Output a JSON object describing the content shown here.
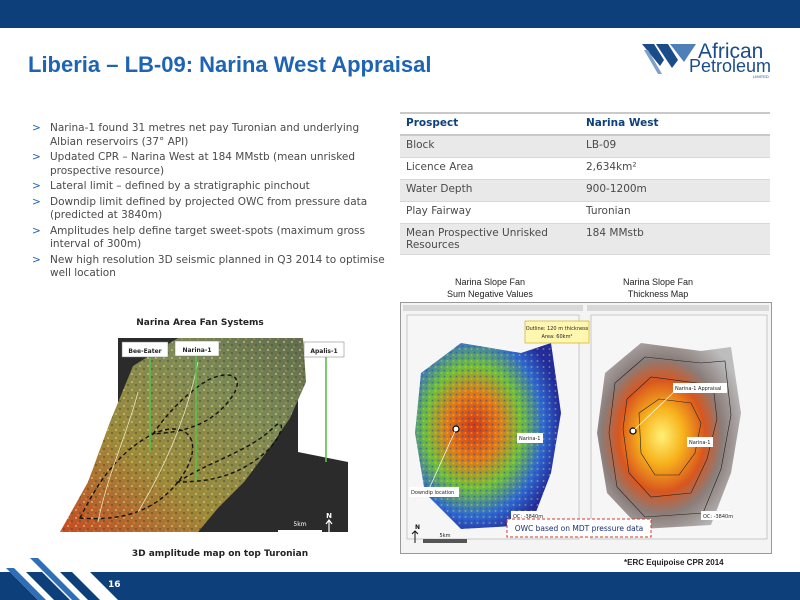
{
  "slide": {
    "title": "Liberia – LB-09: Narina West Appraisal",
    "page_number": "16"
  },
  "logo": {
    "line1": "African",
    "line2": "Petroleum",
    "tag": "LIMITED",
    "colors": {
      "blue": "#1b4c8a"
    }
  },
  "bullets": [
    "Narina-1 found 31 metres net pay Turonian and underlying Albian reservoirs (37° API)",
    "Updated CPR – Narina West at 184 MMstb (mean unrisked prospective resource)",
    "Lateral limit – defined by a stratigraphic pinchout",
    "Downdip limit defined by projected OWC from pressure data (predicted at 3840m)",
    "Amplitudes help define target sweet-spots (maximum gross interval of 300m)",
    "New high resolution 3D seismic planned in Q3 2014 to optimise well location"
  ],
  "bullet_marker": ">",
  "table": {
    "header": [
      "Prospect",
      "Narina West"
    ],
    "rows": [
      [
        "Block",
        "LB-09"
      ],
      [
        "Licence Area",
        "2,634km²"
      ],
      [
        "Water Depth",
        "900-1200m"
      ],
      [
        "Play Fairway",
        "Turonian"
      ],
      [
        "Mean Prospective Unrisked Resources",
        "184 MMstb"
      ]
    ]
  },
  "fan_map": {
    "title": "Narina Area Fan Systems",
    "wells": [
      "Bee-Eater",
      "Narina-1",
      "Apalis-1"
    ],
    "scale": "5km",
    "north": "N",
    "caption": "3D amplitude map on top Turonian"
  },
  "slope_fan": {
    "left_title_1": "Narina Slope Fan",
    "left_title_2": "Sum Negative Values",
    "right_title_1": "Narina Slope Fan",
    "right_title_2": "Thickness Map",
    "outline_note_1": "Outline: 120 m thickness",
    "outline_note_2": "Area: 60km²",
    "label_narina": "Narina-1",
    "label_appraisal": "Narina-1 Appraisal",
    "label_downdip": "Downdip location",
    "label_oil_contact": "OC: -3840m",
    "owc_note": "OWC based on MDT pressure data",
    "scale": "5km",
    "north": "N"
  },
  "footnote": "*ERC Equipoise CPR 2014",
  "colors": {
    "navy": "#0d3f7a",
    "title_blue": "#1e64b4",
    "grey_row": "#e9e9e9"
  }
}
